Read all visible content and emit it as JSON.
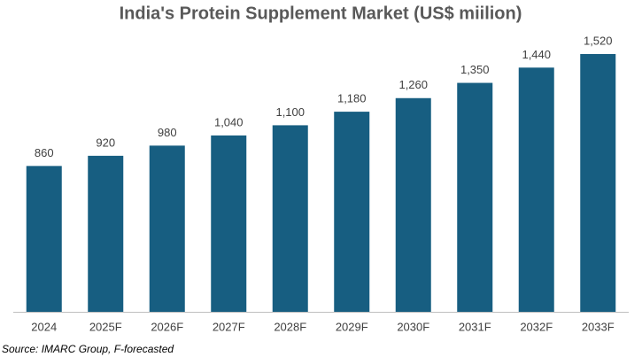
{
  "chart_data": {
    "type": "bar",
    "title": "India's Protein Supplement Market (US$ miilion)",
    "categories": [
      "2024",
      "2025F",
      "2026F",
      "2027F",
      "2028F",
      "2029F",
      "2030F",
      "2031F",
      "2032F",
      "2033F"
    ],
    "values": [
      860,
      920,
      980,
      1040,
      1100,
      1180,
      1260,
      1350,
      1440,
      1520
    ],
    "value_labels": [
      "860",
      "920",
      "980",
      "1,040",
      "1,100",
      "1,180",
      "1,260",
      "1,350",
      "1,440",
      "1,520"
    ],
    "color": "#175e81",
    "source": "Source: IMARC Group, F-forecasted"
  }
}
